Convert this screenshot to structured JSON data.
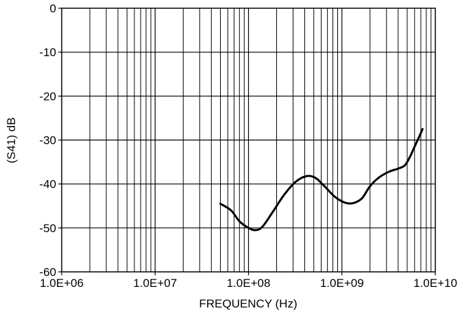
{
  "chart_data": {
    "type": "line",
    "title": "",
    "xlabel": "FREQUENCY (Hz)",
    "ylabel": "(S41) dB",
    "x_scale": "log",
    "xlim": [
      1000000,
      10000000000
    ],
    "ylim": [
      -60,
      0
    ],
    "grid": true,
    "x_ticks": [
      {
        "value": 1000000,
        "label": "1.0E+06"
      },
      {
        "value": 10000000,
        "label": "1.0E+07"
      },
      {
        "value": 100000000,
        "label": "1.0E+08"
      },
      {
        "value": 1000000000,
        "label": "1.0E+09"
      },
      {
        "value": 10000000000,
        "label": "1.0E+10"
      }
    ],
    "y_ticks": [
      {
        "value": 0,
        "label": "0"
      },
      {
        "value": -10,
        "label": "-10"
      },
      {
        "value": -20,
        "label": "-20"
      },
      {
        "value": -30,
        "label": "-30"
      },
      {
        "value": -40,
        "label": "-40"
      },
      {
        "value": -50,
        "label": "-50"
      },
      {
        "value": -60,
        "label": "-60"
      }
    ],
    "series": [
      {
        "color": "#000000",
        "x": [
          50000000,
          65000000,
          80000000,
          100000000,
          118000000,
          140000000,
          180000000,
          240000000,
          320000000,
          420000000,
          520000000,
          650000000,
          850000000,
          1100000000,
          1350000000,
          1650000000,
          2000000000,
          2500000000,
          3200000000,
          4000000000,
          4700000000,
          5300000000,
          6000000000,
          6800000000,
          7300000000
        ],
        "y": [
          -44.5,
          -46.0,
          -48.5,
          -50.0,
          -50.5,
          -49.8,
          -46.5,
          -42.5,
          -39.5,
          -38.2,
          -38.6,
          -40.5,
          -43.0,
          -44.3,
          -44.3,
          -43.2,
          -40.5,
          -38.5,
          -37.2,
          -36.5,
          -35.8,
          -34.0,
          -31.5,
          -29.0,
          -27.5
        ]
      }
    ]
  }
}
